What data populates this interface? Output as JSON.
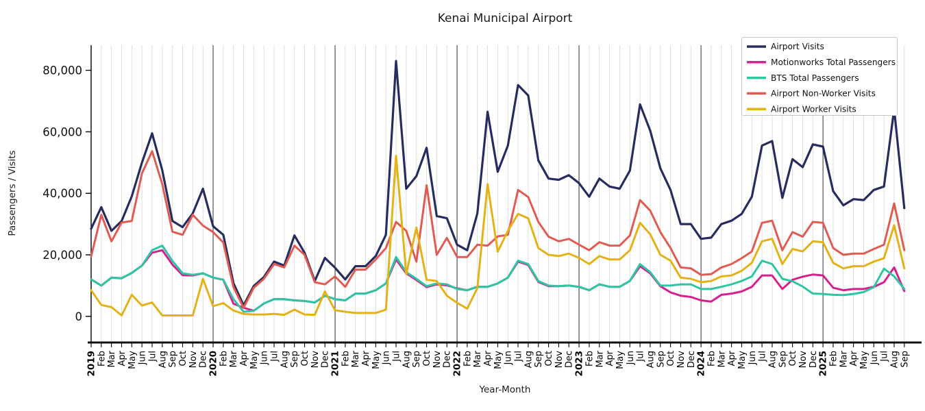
{
  "title": "Kenai Municipal Airport",
  "axes": {
    "xlabel": "Year-Month",
    "ylabel": "Passengers / Visits"
  },
  "chart_data": {
    "type": "line",
    "title": "Kenai Municipal Airport",
    "xlabel": "Year-Month",
    "ylabel": "Passengers / Visits",
    "x_start": "2019-01",
    "x_end": "2025-09",
    "x_tick_labels": [
      "2019",
      "Feb",
      "Mar",
      "Apr",
      "May",
      "Jun",
      "Jul",
      "Aug",
      "Sep",
      "Oct",
      "Nov",
      "Dec",
      "2020",
      "Feb",
      "Mar",
      "Apr",
      "May",
      "Jun",
      "Jul",
      "Aug",
      "Sep",
      "Oct",
      "Nov",
      "Dec",
      "2021",
      "Feb",
      "Mar",
      "Apr",
      "May",
      "Jun",
      "Jul",
      "Aug",
      "Sep",
      "Oct",
      "Nov",
      "Dec",
      "2022",
      "Feb",
      "Mar",
      "Apr",
      "May",
      "Jun",
      "Jul",
      "Aug",
      "Sep",
      "Oct",
      "Nov",
      "Dec",
      "2023",
      "Feb",
      "Mar",
      "Apr",
      "May",
      "Jun",
      "Jul",
      "Aug",
      "Sep",
      "Oct",
      "Nov",
      "Dec",
      "2024",
      "Feb",
      "Mar",
      "Apr",
      "May",
      "Jun",
      "Jul",
      "Aug",
      "Sep",
      "Oct",
      "Nov",
      "Dec",
      "2025",
      "Feb",
      "Mar",
      "Apr",
      "May",
      "Jun",
      "Jul",
      "Aug",
      "Sep"
    ],
    "ylim": [
      -8500,
      88150
    ],
    "yticks": [
      0,
      20000,
      40000,
      60000,
      80000
    ],
    "ytick_labels": [
      "0",
      "20,000",
      "40,000",
      "60,000",
      "80,000"
    ],
    "grid": {
      "vertical_monthly": true,
      "year_boundary_dark_lines": true,
      "horizontal": false
    },
    "legend": {
      "position": "upper right"
    },
    "series": [
      {
        "name": "Airport Visits",
        "color": "#272c5f",
        "values": [
          28500,
          35500,
          27800,
          31000,
          39000,
          50000,
          59500,
          47500,
          31000,
          29000,
          33500,
          41500,
          29300,
          26500,
          10800,
          3600,
          9900,
          12800,
          17800,
          16500,
          26300,
          20700,
          11500,
          19000,
          15800,
          12000,
          16300,
          16300,
          19600,
          26500,
          83000,
          41500,
          45600,
          54800,
          32600,
          31900,
          23300,
          21500,
          33500,
          66500,
          47000,
          55500,
          75200,
          71800,
          50700,
          44800,
          44400,
          45900,
          43300,
          38900,
          44800,
          42200,
          41500,
          47400,
          68900,
          60400,
          48100,
          41100,
          30000,
          30000,
          25200,
          25600,
          30000,
          31100,
          33300,
          38900,
          55500,
          57000,
          38500,
          51100,
          48500,
          55900,
          55200,
          40700,
          36100,
          38100,
          37800,
          41100,
          42200,
          67400,
          35200
        ]
      },
      {
        "name": "Motionworks Total Passengers",
        "color": "#d6208d",
        "values": [
          12000,
          10000,
          12600,
          12400,
          14100,
          16500,
          20700,
          21500,
          16800,
          13400,
          13300,
          14000,
          12600,
          11900,
          4100,
          2800,
          1800,
          4200,
          5600,
          5600,
          5200,
          5000,
          4500,
          6700,
          5600,
          5200,
          7400,
          7400,
          8500,
          10700,
          18500,
          14000,
          11800,
          9500,
          10400,
          10100,
          9100,
          8500,
          9600,
          9600,
          10700,
          12600,
          17800,
          16700,
          11200,
          9800,
          9800,
          10000,
          9600,
          8500,
          10400,
          9600,
          9600,
          11500,
          16300,
          14000,
          9800,
          7800,
          6700,
          6300,
          5200,
          4800,
          7000,
          7400,
          8100,
          9600,
          13300,
          13300,
          8900,
          11900,
          12900,
          13600,
          13300,
          9300,
          8500,
          8900,
          8900,
          9600,
          11100,
          15900,
          8200
        ]
      },
      {
        "name": "BTS Total Passengers",
        "color": "#2dc5a2",
        "values": [
          12000,
          10000,
          12600,
          12400,
          14100,
          16500,
          21500,
          23000,
          18000,
          14000,
          13500,
          14000,
          12600,
          11900,
          5600,
          1500,
          1800,
          4200,
          5600,
          5600,
          5200,
          5000,
          4500,
          6700,
          5600,
          5200,
          7400,
          7400,
          8500,
          10700,
          19300,
          14400,
          12200,
          9800,
          10700,
          10400,
          8900,
          8500,
          9600,
          9600,
          10700,
          12600,
          18100,
          17000,
          11500,
          10000,
          9800,
          10000,
          9600,
          8500,
          10400,
          9600,
          9600,
          11500,
          17000,
          14400,
          10000,
          10000,
          10400,
          10400,
          8900,
          8900,
          9600,
          10400,
          11500,
          13000,
          18100,
          17000,
          12200,
          11400,
          9700,
          7400,
          7300,
          7000,
          6900,
          7300,
          7900,
          9500,
          15500,
          13000,
          8900
        ]
      },
      {
        "name": "Airport Non-Worker Visits",
        "color": "#e15b52",
        "values": [
          19500,
          33000,
          24400,
          30500,
          31000,
          46500,
          53700,
          43000,
          27500,
          26500,
          33000,
          29500,
          27400,
          24000,
          9500,
          2800,
          9300,
          12200,
          17000,
          15900,
          23000,
          20000,
          11100,
          10400,
          13000,
          9600,
          15200,
          15200,
          18500,
          22200,
          30700,
          27800,
          17800,
          42600,
          20000,
          25500,
          19300,
          19300,
          23300,
          23000,
          26000,
          26500,
          41100,
          38800,
          30700,
          25900,
          24400,
          25200,
          23300,
          21500,
          24100,
          23000,
          23000,
          26300,
          37800,
          34400,
          27400,
          22200,
          15900,
          15600,
          13500,
          13700,
          15900,
          17000,
          18900,
          21100,
          30400,
          31100,
          21500,
          27400,
          25900,
          30700,
          30400,
          22200,
          20000,
          20400,
          20400,
          21900,
          23300,
          36700,
          21500
        ]
      },
      {
        "name": "Airport Worker Visits",
        "color": "#e4b217",
        "values": [
          8500,
          3700,
          3000,
          300,
          7000,
          3500,
          4500,
          300,
          300,
          300,
          300,
          12200,
          3300,
          4300,
          1900,
          800,
          600,
          600,
          800,
          500,
          2200,
          600,
          500,
          8100,
          2000,
          1500,
          1100,
          1100,
          1100,
          2200,
          52200,
          13700,
          28900,
          11900,
          11500,
          6700,
          4400,
          2500,
          9200,
          43000,
          21000,
          27800,
          33300,
          31900,
          22200,
          20000,
          19600,
          20400,
          19000,
          17000,
          19600,
          18500,
          18500,
          21500,
          30400,
          26700,
          20000,
          18100,
          12600,
          12200,
          11100,
          11500,
          13000,
          13300,
          14800,
          17400,
          24400,
          25200,
          17000,
          21900,
          21100,
          24400,
          24100,
          17400,
          15600,
          16300,
          16300,
          17800,
          18900,
          29600,
          15600
        ]
      }
    ]
  }
}
